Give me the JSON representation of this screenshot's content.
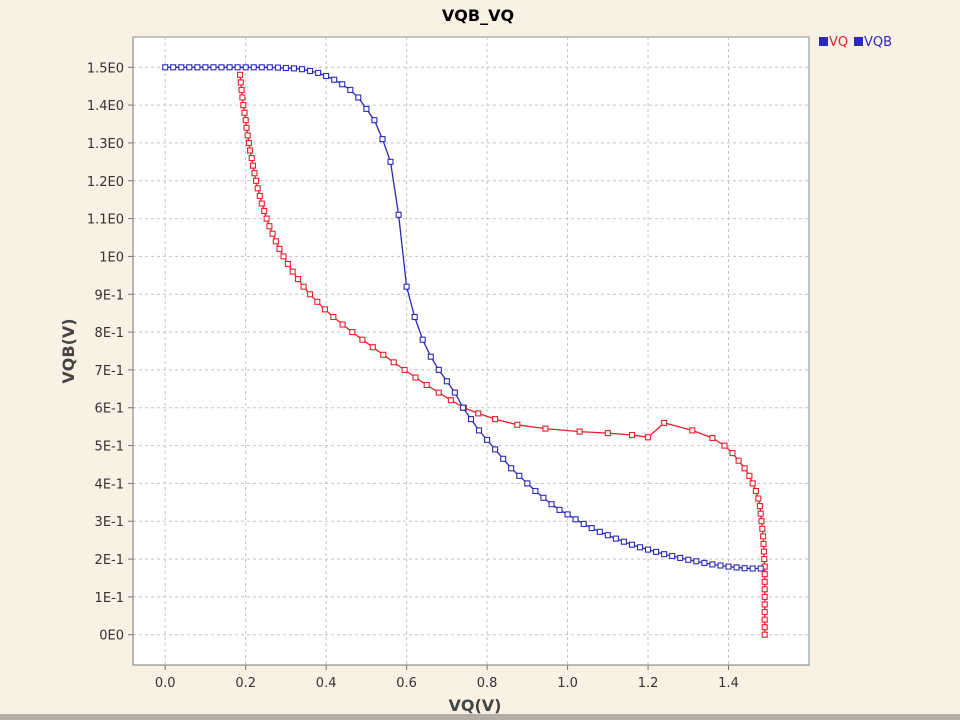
{
  "chart_data": {
    "type": "line",
    "title": "VQB_VQ",
    "xlabel": "VQ(V)",
    "ylabel": "VQB(V)",
    "xlim": [
      -0.08,
      1.6
    ],
    "ylim": [
      -0.08,
      1.58
    ],
    "grid": true,
    "legend_position": "top-right",
    "xticks": [
      0.0,
      0.2,
      0.4,
      0.6,
      0.8,
      1.0,
      1.2,
      1.4
    ],
    "xtick_labels": [
      "0.0",
      "0.2",
      "0.4",
      "0.6",
      "0.8",
      "1.0",
      "1.2",
      "1.4"
    ],
    "yticks": [
      0,
      0.1,
      0.2,
      0.3,
      0.4,
      0.5,
      0.6,
      0.7,
      0.8,
      0.9,
      1.0,
      1.1,
      1.2,
      1.3,
      1.4,
      1.5
    ],
    "ytick_labels": [
      "0E0",
      "1E-1",
      "2E-1",
      "3E-1",
      "4E-1",
      "5E-1",
      "6E-1",
      "7E-1",
      "8E-1",
      "9E-1",
      "1E0",
      "1.1E0",
      "1.2E0",
      "1.3E0",
      "1.4E0",
      "1.5E0"
    ],
    "series": [
      {
        "name": "VQ",
        "color": "#e8202a",
        "points": [
          [
            0.186,
            1.48
          ],
          [
            0.188,
            1.46
          ],
          [
            0.19,
            1.44
          ],
          [
            0.192,
            1.42
          ],
          [
            0.194,
            1.4
          ],
          [
            0.197,
            1.38
          ],
          [
            0.2,
            1.36
          ],
          [
            0.202,
            1.34
          ],
          [
            0.205,
            1.32
          ],
          [
            0.208,
            1.3
          ],
          [
            0.211,
            1.28
          ],
          [
            0.215,
            1.26
          ],
          [
            0.218,
            1.24
          ],
          [
            0.222,
            1.22
          ],
          [
            0.226,
            1.2
          ],
          [
            0.23,
            1.18
          ],
          [
            0.235,
            1.16
          ],
          [
            0.24,
            1.14
          ],
          [
            0.246,
            1.12
          ],
          [
            0.252,
            1.1
          ],
          [
            0.259,
            1.08
          ],
          [
            0.267,
            1.06
          ],
          [
            0.275,
            1.04
          ],
          [
            0.284,
            1.02
          ],
          [
            0.294,
            1.0
          ],
          [
            0.305,
            0.98
          ],
          [
            0.317,
            0.96
          ],
          [
            0.33,
            0.94
          ],
          [
            0.344,
            0.92
          ],
          [
            0.36,
            0.9
          ],
          [
            0.378,
            0.88
          ],
          [
            0.397,
            0.86
          ],
          [
            0.418,
            0.84
          ],
          [
            0.441,
            0.82
          ],
          [
            0.465,
            0.8
          ],
          [
            0.49,
            0.78
          ],
          [
            0.516,
            0.76
          ],
          [
            0.542,
            0.74
          ],
          [
            0.568,
            0.72
          ],
          [
            0.595,
            0.7
          ],
          [
            0.622,
            0.68
          ],
          [
            0.65,
            0.66
          ],
          [
            0.68,
            0.64
          ],
          [
            0.71,
            0.62
          ],
          [
            0.742,
            0.6
          ],
          [
            0.778,
            0.585
          ],
          [
            0.82,
            0.57
          ],
          [
            0.875,
            0.555
          ],
          [
            0.945,
            0.545
          ],
          [
            1.03,
            0.537
          ],
          [
            1.1,
            0.533
          ],
          [
            1.16,
            0.528
          ],
          [
            1.2,
            0.522
          ],
          [
            1.24,
            0.56
          ],
          [
            1.31,
            0.54
          ],
          [
            1.36,
            0.52
          ],
          [
            1.39,
            0.5
          ],
          [
            1.41,
            0.48
          ],
          [
            1.425,
            0.46
          ],
          [
            1.44,
            0.44
          ],
          [
            1.452,
            0.42
          ],
          [
            1.46,
            0.4
          ],
          [
            1.468,
            0.38
          ],
          [
            1.474,
            0.36
          ],
          [
            1.478,
            0.34
          ],
          [
            1.48,
            0.32
          ],
          [
            1.482,
            0.3
          ],
          [
            1.484,
            0.28
          ],
          [
            1.486,
            0.26
          ],
          [
            1.487,
            0.24
          ],
          [
            1.488,
            0.22
          ],
          [
            1.489,
            0.2
          ],
          [
            1.49,
            0.18
          ],
          [
            1.49,
            0.16
          ],
          [
            1.49,
            0.14
          ],
          [
            1.49,
            0.12
          ],
          [
            1.49,
            0.1
          ],
          [
            1.49,
            0.08
          ],
          [
            1.49,
            0.06
          ],
          [
            1.49,
            0.04
          ],
          [
            1.49,
            0.02
          ],
          [
            1.49,
            0.0
          ]
        ]
      },
      {
        "name": "VQB",
        "color": "#2a2ab8",
        "points": [
          [
            0.0,
            1.5
          ],
          [
            0.02,
            1.5
          ],
          [
            0.04,
            1.5
          ],
          [
            0.06,
            1.5
          ],
          [
            0.08,
            1.5
          ],
          [
            0.1,
            1.5
          ],
          [
            0.12,
            1.5
          ],
          [
            0.14,
            1.5
          ],
          [
            0.16,
            1.5
          ],
          [
            0.18,
            1.5
          ],
          [
            0.2,
            1.5
          ],
          [
            0.22,
            1.5
          ],
          [
            0.24,
            1.5
          ],
          [
            0.26,
            1.5
          ],
          [
            0.28,
            1.499
          ],
          [
            0.3,
            1.498
          ],
          [
            0.32,
            1.497
          ],
          [
            0.34,
            1.495
          ],
          [
            0.36,
            1.49
          ],
          [
            0.38,
            1.485
          ],
          [
            0.4,
            1.477
          ],
          [
            0.42,
            1.467
          ],
          [
            0.44,
            1.455
          ],
          [
            0.46,
            1.44
          ],
          [
            0.48,
            1.42
          ],
          [
            0.5,
            1.39
          ],
          [
            0.52,
            1.36
          ],
          [
            0.54,
            1.31
          ],
          [
            0.56,
            1.25
          ],
          [
            0.58,
            1.11
          ],
          [
            0.6,
            0.92
          ],
          [
            0.62,
            0.84
          ],
          [
            0.64,
            0.78
          ],
          [
            0.66,
            0.735
          ],
          [
            0.68,
            0.7
          ],
          [
            0.7,
            0.67
          ],
          [
            0.72,
            0.64
          ],
          [
            0.74,
            0.6
          ],
          [
            0.76,
            0.57
          ],
          [
            0.78,
            0.54
          ],
          [
            0.8,
            0.515
          ],
          [
            0.82,
            0.49
          ],
          [
            0.84,
            0.465
          ],
          [
            0.86,
            0.44
          ],
          [
            0.88,
            0.42
          ],
          [
            0.9,
            0.4
          ],
          [
            0.92,
            0.38
          ],
          [
            0.94,
            0.362
          ],
          [
            0.96,
            0.345
          ],
          [
            0.98,
            0.33
          ],
          [
            1.0,
            0.318
          ],
          [
            1.02,
            0.305
          ],
          [
            1.04,
            0.293
          ],
          [
            1.06,
            0.282
          ],
          [
            1.08,
            0.272
          ],
          [
            1.1,
            0.263
          ],
          [
            1.12,
            0.254
          ],
          [
            1.14,
            0.246
          ],
          [
            1.16,
            0.238
          ],
          [
            1.18,
            0.231
          ],
          [
            1.2,
            0.225
          ],
          [
            1.22,
            0.219
          ],
          [
            1.24,
            0.213
          ],
          [
            1.26,
            0.208
          ],
          [
            1.28,
            0.203
          ],
          [
            1.3,
            0.198
          ],
          [
            1.32,
            0.194
          ],
          [
            1.34,
            0.19
          ],
          [
            1.36,
            0.186
          ],
          [
            1.38,
            0.183
          ],
          [
            1.4,
            0.18
          ],
          [
            1.42,
            0.178
          ],
          [
            1.44,
            0.176
          ],
          [
            1.46,
            0.175
          ],
          [
            1.48,
            0.175
          ]
        ]
      }
    ]
  }
}
